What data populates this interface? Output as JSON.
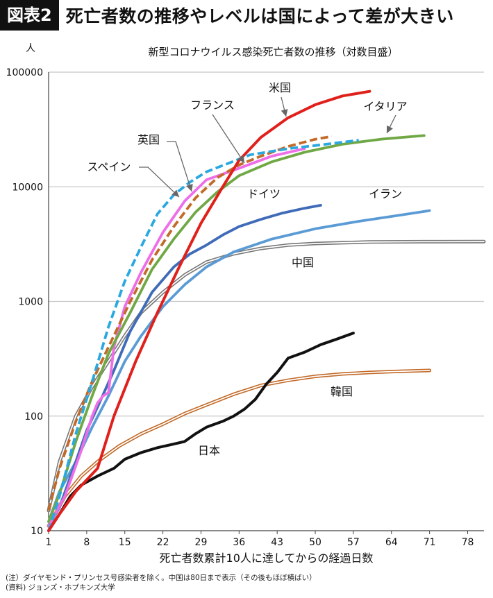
{
  "header": {
    "badge": "図表2",
    "title": "死亡者数の推移やレベルは国によって差が大きい"
  },
  "notes": [
    "(注）ダイヤモンド・プリンセス号感染者を除く。中国は80日まで表示（その後もほぼ横ばい）",
    "(資料) ジョンズ・ホプキンズ大学"
  ],
  "chart_data": {
    "type": "line",
    "title": "新型コロナウイルス感染死亡者数の推移（対数目盛）",
    "xlabel": "死亡者数累計10人に達してからの経過日数",
    "ylabel": "人",
    "y_scale": "log",
    "xlim": [
      1,
      81
    ],
    "ylim": [
      10,
      100000
    ],
    "x_ticks": [
      1,
      8,
      15,
      22,
      29,
      36,
      43,
      50,
      57,
      64,
      71,
      78
    ],
    "y_ticks": [
      10,
      100,
      1000,
      10000,
      100000
    ],
    "y_tick_labels": [
      "10",
      "100",
      "1000",
      "10000",
      "100000"
    ],
    "grid": "horizontal",
    "series": [
      {
        "name": "米国",
        "color": "#e0201b",
        "style": "solid",
        "x": [
          1,
          3,
          6,
          10,
          13,
          17,
          21,
          25,
          29,
          33,
          36,
          40,
          45,
          50,
          55,
          60
        ],
        "y": [
          10,
          14,
          22,
          35,
          100,
          300,
          800,
          2000,
          4800,
          10000,
          17000,
          27000,
          40000,
          52000,
          62000,
          68000
        ]
      },
      {
        "name": "イタリア",
        "color": "#6fa845",
        "style": "solid",
        "x": [
          1,
          3,
          6,
          9,
          12,
          16,
          20,
          24,
          28,
          32,
          36,
          42,
          48,
          55,
          62,
          70
        ],
        "y": [
          12,
          21,
          60,
          150,
          350,
          800,
          1900,
          3500,
          6000,
          9000,
          12500,
          16500,
          20000,
          23500,
          26000,
          28000
        ]
      },
      {
        "name": "スペイン",
        "color": "#2aa8e0",
        "style": "dashed",
        "x": [
          1,
          3,
          6,
          9,
          12,
          15,
          18,
          21,
          24,
          27,
          30,
          34,
          38,
          45,
          52,
          58
        ],
        "y": [
          10,
          20,
          70,
          200,
          600,
          1500,
          3000,
          5800,
          8500,
          11000,
          13500,
          16000,
          19000,
          21500,
          23500,
          25500
        ]
      },
      {
        "name": "英国",
        "color": "#c26a28",
        "style": "dashed",
        "x": [
          1,
          3,
          6,
          9,
          12,
          16,
          20,
          24,
          28,
          32,
          36,
          40,
          45,
          50,
          53
        ],
        "y": [
          15,
          35,
          90,
          200,
          400,
          1000,
          2300,
          4500,
          8000,
          12000,
          15500,
          18500,
          22500,
          26000,
          27500
        ]
      },
      {
        "name": "フランス",
        "color": "#ee6ee8",
        "style": "solid",
        "x": [
          1,
          4,
          7,
          9,
          10,
          11,
          12,
          13,
          15,
          18,
          22,
          26,
          30,
          36,
          42,
          48
        ],
        "y": [
          11,
          20,
          50,
          100,
          130,
          150,
          160,
          400,
          900,
          1800,
          4000,
          7500,
          11500,
          14500,
          18500,
          21500
        ]
      },
      {
        "name": "ドイツ",
        "color": "#3f6bb8",
        "style": "solid",
        "x": [
          1,
          3,
          6,
          8,
          10,
          13,
          16,
          20,
          24,
          27,
          30,
          33,
          36,
          40,
          44,
          48,
          51
        ],
        "y": [
          11,
          16,
          40,
          75,
          120,
          250,
          550,
          1200,
          2000,
          2600,
          3100,
          3800,
          4500,
          5200,
          5900,
          6500,
          6900
        ]
      },
      {
        "name": "イラン",
        "color": "#5b9bd5",
        "style": "solid",
        "x": [
          1,
          3,
          6,
          9,
          12,
          15,
          18,
          22,
          26,
          30,
          35,
          42,
          50,
          58,
          66,
          71
        ],
        "y": [
          12,
          22,
          40,
          80,
          150,
          300,
          500,
          900,
          1400,
          2000,
          2700,
          3500,
          4300,
          5000,
          5700,
          6200
        ]
      },
      {
        "name": "中国",
        "color": "#777777",
        "style": "double",
        "x": [
          1,
          3,
          6,
          9,
          12,
          15,
          18,
          22,
          26,
          30,
          35,
          40,
          45,
          50,
          55,
          60,
          70,
          81
        ],
        "y": [
          15,
          40,
          100,
          180,
          300,
          500,
          800,
          1200,
          1700,
          2200,
          2600,
          2900,
          3100,
          3200,
          3250,
          3300,
          3320,
          3330
        ]
      },
      {
        "name": "韓国",
        "color": "#c26a28",
        "style": "double",
        "x": [
          1,
          4,
          7,
          10,
          14,
          18,
          22,
          26,
          30,
          35,
          40,
          45,
          50,
          55,
          60,
          65,
          71
        ],
        "y": [
          11,
          20,
          30,
          40,
          55,
          70,
          85,
          105,
          125,
          155,
          185,
          205,
          222,
          233,
          240,
          245,
          250
        ]
      },
      {
        "name": "日本",
        "color": "#111111",
        "style": "solid",
        "x": [
          1,
          3,
          5,
          7,
          10,
          13,
          15,
          18,
          21,
          24,
          26,
          28,
          30,
          33,
          35,
          37,
          39,
          41,
          43,
          45,
          48,
          51,
          54,
          57
        ],
        "y": [
          10,
          14,
          20,
          25,
          30,
          35,
          42,
          48,
          53,
          57,
          60,
          70,
          80,
          90,
          100,
          115,
          140,
          190,
          240,
          320,
          360,
          420,
          470,
          530
        ]
      }
    ],
    "annotations": [
      "米国",
      "イタリア",
      "フランス",
      "英国",
      "スペイン",
      "ドイツ",
      "イラン",
      "中国",
      "韓国",
      "日本"
    ]
  }
}
